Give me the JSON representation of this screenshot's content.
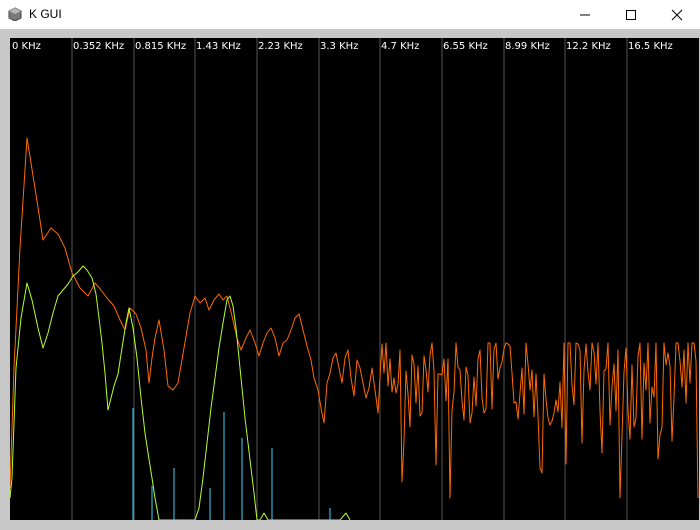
{
  "window": {
    "title": "K GUI",
    "icon": "app-icon",
    "controls": [
      "minimize-icon",
      "maximize-icon",
      "close-icon"
    ]
  },
  "spectrum": {
    "background": "#000000",
    "gridline_color": "#555555",
    "frequency_labels": [
      "0 KHz",
      "0.352 KHz",
      "0.815 KHz",
      "1.43 KHz",
      "2.23 KHz",
      "3.3 KHz",
      "4.7 KHz",
      "6.55 KHz",
      "8.99 KHz",
      "12.2 KHz",
      "16.5 KHz"
    ],
    "series_colors": {
      "orange": "#ff6a00",
      "green": "#b4ff2a",
      "cyan": "#3cd6ff"
    }
  }
}
